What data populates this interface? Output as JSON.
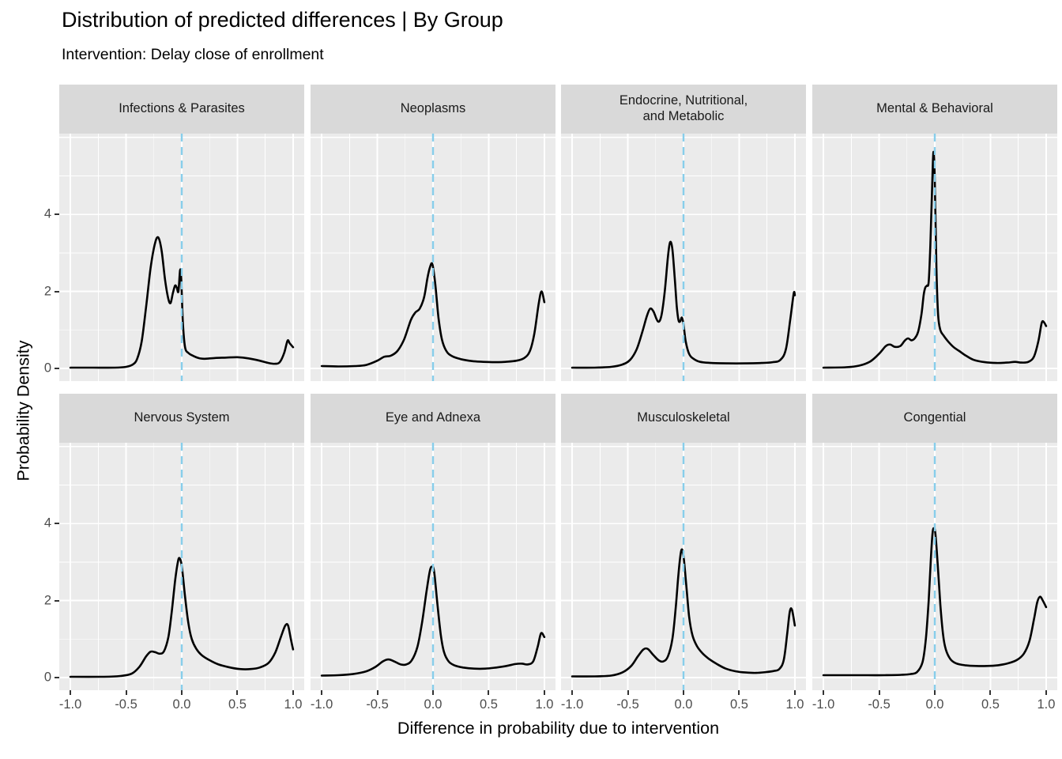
{
  "colors": {
    "background": "#FFFFFF",
    "panel_bg": "#EBEBEB",
    "strip_bg": "#D9D9D9",
    "grid": "#FFFFFF",
    "curve": "#000000",
    "reference_line": "#87CEEB",
    "tick_text": "#4D4D4D",
    "strip_text": "#1A1A1A",
    "tick_mark": "#333333"
  },
  "chart_data": {
    "type": "line",
    "subtype": "faceted-density",
    "title": "Distribution of predicted differences | By Group",
    "subtitle": "Intervention: Delay close of enrollment",
    "xlabel": "Difference in probability due to intervention",
    "ylabel": "Probability Density",
    "xlim": [
      -1.1,
      1.1
    ],
    "ylim": [
      -0.33,
      6.1
    ],
    "x_ticks": [
      -1.0,
      -0.5,
      0.0,
      0.5,
      1.0
    ],
    "x_tick_labels": [
      "-1.0",
      "-0.5",
      "0.0",
      "0.5",
      "1.0"
    ],
    "y_ticks": [
      0,
      2,
      4
    ],
    "y_tick_labels": [
      "0",
      "2",
      "4"
    ],
    "grid": {
      "major_x": [
        -1.0,
        -0.5,
        0.0,
        0.5,
        1.0
      ],
      "minor_x": [
        -0.75,
        -0.25,
        0.25,
        0.75
      ],
      "major_y": [
        0,
        2,
        4,
        6
      ],
      "minor_y": [
        1,
        3,
        5
      ],
      "grid_on": true
    },
    "legend_position": "none",
    "reference_line": {
      "x": 0,
      "style": "dashed"
    },
    "facet_layout": {
      "rows": 2,
      "cols": 4
    },
    "facets": [
      {
        "label": "Infections & Parasites",
        "points": [
          [
            -1,
            0.02
          ],
          [
            -0.8,
            0.02
          ],
          [
            -0.6,
            0.02
          ],
          [
            -0.5,
            0.04
          ],
          [
            -0.44,
            0.1
          ],
          [
            -0.4,
            0.25
          ],
          [
            -0.36,
            0.7
          ],
          [
            -0.32,
            1.6
          ],
          [
            -0.28,
            2.6
          ],
          [
            -0.24,
            3.25
          ],
          [
            -0.21,
            3.4
          ],
          [
            -0.18,
            3.05
          ],
          [
            -0.15,
            2.3
          ],
          [
            -0.12,
            1.8
          ],
          [
            -0.1,
            1.7
          ],
          [
            -0.08,
            1.95
          ],
          [
            -0.06,
            2.15
          ],
          [
            -0.045,
            2.1
          ],
          [
            -0.03,
            2.0
          ],
          [
            -0.015,
            2.55
          ],
          [
            -0.005,
            2.35
          ],
          [
            0.01,
            1.2
          ],
          [
            0.03,
            0.55
          ],
          [
            0.06,
            0.4
          ],
          [
            0.1,
            0.33
          ],
          [
            0.15,
            0.27
          ],
          [
            0.2,
            0.25
          ],
          [
            0.3,
            0.27
          ],
          [
            0.4,
            0.28
          ],
          [
            0.5,
            0.29
          ],
          [
            0.6,
            0.26
          ],
          [
            0.7,
            0.2
          ],
          [
            0.78,
            0.14
          ],
          [
            0.84,
            0.12
          ],
          [
            0.88,
            0.16
          ],
          [
            0.92,
            0.4
          ],
          [
            0.95,
            0.72
          ],
          [
            0.97,
            0.65
          ],
          [
            1,
            0.55
          ]
        ]
      },
      {
        "label": "Neoplasms",
        "points": [
          [
            -1,
            0.06
          ],
          [
            -0.85,
            0.05
          ],
          [
            -0.7,
            0.06
          ],
          [
            -0.6,
            0.09
          ],
          [
            -0.5,
            0.2
          ],
          [
            -0.44,
            0.3
          ],
          [
            -0.38,
            0.33
          ],
          [
            -0.32,
            0.45
          ],
          [
            -0.26,
            0.75
          ],
          [
            -0.2,
            1.25
          ],
          [
            -0.16,
            1.45
          ],
          [
            -0.12,
            1.55
          ],
          [
            -0.08,
            1.85
          ],
          [
            -0.05,
            2.35
          ],
          [
            -0.025,
            2.65
          ],
          [
            -0.005,
            2.7
          ],
          [
            0.02,
            2.2
          ],
          [
            0.05,
            1.3
          ],
          [
            0.08,
            0.75
          ],
          [
            0.12,
            0.45
          ],
          [
            0.17,
            0.32
          ],
          [
            0.25,
            0.24
          ],
          [
            0.35,
            0.19
          ],
          [
            0.45,
            0.17
          ],
          [
            0.55,
            0.16
          ],
          [
            0.65,
            0.17
          ],
          [
            0.75,
            0.2
          ],
          [
            0.82,
            0.27
          ],
          [
            0.87,
            0.45
          ],
          [
            0.91,
            0.9
          ],
          [
            0.95,
            1.7
          ],
          [
            0.975,
            2.0
          ],
          [
            1,
            1.72
          ]
        ]
      },
      {
        "label": "Endocrine, Nutritional,\nand Metabolic",
        "points": [
          [
            -1,
            0.02
          ],
          [
            -0.8,
            0.02
          ],
          [
            -0.65,
            0.04
          ],
          [
            -0.55,
            0.1
          ],
          [
            -0.48,
            0.22
          ],
          [
            -0.42,
            0.5
          ],
          [
            -0.37,
            0.95
          ],
          [
            -0.33,
            1.35
          ],
          [
            -0.3,
            1.55
          ],
          [
            -0.27,
            1.48
          ],
          [
            -0.23,
            1.22
          ],
          [
            -0.2,
            1.35
          ],
          [
            -0.17,
            1.95
          ],
          [
            -0.14,
            2.9
          ],
          [
            -0.12,
            3.28
          ],
          [
            -0.1,
            3.1
          ],
          [
            -0.08,
            2.4
          ],
          [
            -0.06,
            1.6
          ],
          [
            -0.045,
            1.25
          ],
          [
            -0.03,
            1.22
          ],
          [
            -0.015,
            1.32
          ],
          [
            0,
            1.15
          ],
          [
            0.02,
            0.7
          ],
          [
            0.05,
            0.38
          ],
          [
            0.09,
            0.25
          ],
          [
            0.15,
            0.17
          ],
          [
            0.25,
            0.14
          ],
          [
            0.4,
            0.13
          ],
          [
            0.55,
            0.13
          ],
          [
            0.7,
            0.14
          ],
          [
            0.8,
            0.16
          ],
          [
            0.87,
            0.22
          ],
          [
            0.92,
            0.5
          ],
          [
            0.96,
            1.3
          ],
          [
            0.99,
            1.95
          ],
          [
            1,
            1.9
          ]
        ]
      },
      {
        "label": "Mental & Behavioral",
        "points": [
          [
            -1,
            0.02
          ],
          [
            -0.8,
            0.03
          ],
          [
            -0.68,
            0.07
          ],
          [
            -0.58,
            0.18
          ],
          [
            -0.5,
            0.38
          ],
          [
            -0.44,
            0.58
          ],
          [
            -0.4,
            0.62
          ],
          [
            -0.36,
            0.56
          ],
          [
            -0.31,
            0.58
          ],
          [
            -0.27,
            0.72
          ],
          [
            -0.24,
            0.78
          ],
          [
            -0.21,
            0.73
          ],
          [
            -0.18,
            0.78
          ],
          [
            -0.15,
            0.95
          ],
          [
            -0.12,
            1.4
          ],
          [
            -0.1,
            1.9
          ],
          [
            -0.085,
            2.1
          ],
          [
            -0.07,
            2.15
          ],
          [
            -0.055,
            2.25
          ],
          [
            -0.04,
            3.2
          ],
          [
            -0.025,
            4.6
          ],
          [
            -0.012,
            5.62
          ],
          [
            0,
            4.9
          ],
          [
            0.015,
            2.6
          ],
          [
            0.03,
            1.4
          ],
          [
            0.05,
            1.0
          ],
          [
            0.08,
            0.85
          ],
          [
            0.12,
            0.7
          ],
          [
            0.17,
            0.55
          ],
          [
            0.22,
            0.45
          ],
          [
            0.28,
            0.33
          ],
          [
            0.35,
            0.22
          ],
          [
            0.45,
            0.16
          ],
          [
            0.55,
            0.14
          ],
          [
            0.65,
            0.15
          ],
          [
            0.72,
            0.17
          ],
          [
            0.78,
            0.15
          ],
          [
            0.84,
            0.17
          ],
          [
            0.89,
            0.3
          ],
          [
            0.93,
            0.7
          ],
          [
            0.96,
            1.18
          ],
          [
            0.98,
            1.2
          ],
          [
            1,
            1.1
          ]
        ]
      },
      {
        "label": "Nervous System",
        "points": [
          [
            -1,
            0.02
          ],
          [
            -0.7,
            0.02
          ],
          [
            -0.55,
            0.04
          ],
          [
            -0.45,
            0.1
          ],
          [
            -0.38,
            0.28
          ],
          [
            -0.32,
            0.55
          ],
          [
            -0.28,
            0.67
          ],
          [
            -0.24,
            0.66
          ],
          [
            -0.2,
            0.62
          ],
          [
            -0.16,
            0.68
          ],
          [
            -0.12,
            1.05
          ],
          [
            -0.09,
            1.7
          ],
          [
            -0.06,
            2.5
          ],
          [
            -0.035,
            3.0
          ],
          [
            -0.02,
            3.1
          ],
          [
            0,
            2.9
          ],
          [
            0.03,
            2.1
          ],
          [
            0.06,
            1.4
          ],
          [
            0.09,
            1.0
          ],
          [
            0.13,
            0.75
          ],
          [
            0.18,
            0.58
          ],
          [
            0.25,
            0.45
          ],
          [
            0.33,
            0.34
          ],
          [
            0.42,
            0.27
          ],
          [
            0.52,
            0.22
          ],
          [
            0.62,
            0.22
          ],
          [
            0.7,
            0.26
          ],
          [
            0.78,
            0.38
          ],
          [
            0.84,
            0.65
          ],
          [
            0.89,
            1.05
          ],
          [
            0.93,
            1.35
          ],
          [
            0.955,
            1.35
          ],
          [
            0.98,
            1.0
          ],
          [
            1,
            0.73
          ]
        ]
      },
      {
        "label": "Eye and Adnexa",
        "points": [
          [
            -1,
            0.05
          ],
          [
            -0.85,
            0.06
          ],
          [
            -0.72,
            0.09
          ],
          [
            -0.6,
            0.16
          ],
          [
            -0.52,
            0.27
          ],
          [
            -0.45,
            0.42
          ],
          [
            -0.4,
            0.47
          ],
          [
            -0.35,
            0.42
          ],
          [
            -0.29,
            0.34
          ],
          [
            -0.24,
            0.34
          ],
          [
            -0.19,
            0.45
          ],
          [
            -0.14,
            0.8
          ],
          [
            -0.1,
            1.4
          ],
          [
            -0.06,
            2.2
          ],
          [
            -0.03,
            2.75
          ],
          [
            -0.01,
            2.88
          ],
          [
            0.01,
            2.75
          ],
          [
            0.04,
            1.9
          ],
          [
            0.07,
            1.1
          ],
          [
            0.1,
            0.65
          ],
          [
            0.14,
            0.42
          ],
          [
            0.19,
            0.32
          ],
          [
            0.27,
            0.26
          ],
          [
            0.37,
            0.23
          ],
          [
            0.47,
            0.23
          ],
          [
            0.57,
            0.26
          ],
          [
            0.66,
            0.3
          ],
          [
            0.74,
            0.35
          ],
          [
            0.8,
            0.36
          ],
          [
            0.85,
            0.34
          ],
          [
            0.9,
            0.42
          ],
          [
            0.94,
            0.8
          ],
          [
            0.97,
            1.15
          ],
          [
            1,
            1.05
          ]
        ]
      },
      {
        "label": "Musculoskeletal",
        "points": [
          [
            -1,
            0.03
          ],
          [
            -0.8,
            0.03
          ],
          [
            -0.65,
            0.05
          ],
          [
            -0.55,
            0.13
          ],
          [
            -0.47,
            0.3
          ],
          [
            -0.41,
            0.55
          ],
          [
            -0.36,
            0.73
          ],
          [
            -0.32,
            0.74
          ],
          [
            -0.27,
            0.58
          ],
          [
            -0.22,
            0.44
          ],
          [
            -0.18,
            0.42
          ],
          [
            -0.14,
            0.55
          ],
          [
            -0.1,
            1.0
          ],
          [
            -0.07,
            1.8
          ],
          [
            -0.045,
            2.7
          ],
          [
            -0.02,
            3.3
          ],
          [
            0,
            3.15
          ],
          [
            0.025,
            2.4
          ],
          [
            0.05,
            1.6
          ],
          [
            0.08,
            1.1
          ],
          [
            0.12,
            0.82
          ],
          [
            0.17,
            0.63
          ],
          [
            0.23,
            0.48
          ],
          [
            0.3,
            0.35
          ],
          [
            0.38,
            0.23
          ],
          [
            0.47,
            0.16
          ],
          [
            0.56,
            0.13
          ],
          [
            0.65,
            0.12
          ],
          [
            0.74,
            0.14
          ],
          [
            0.81,
            0.17
          ],
          [
            0.86,
            0.22
          ],
          [
            0.9,
            0.45
          ],
          [
            0.93,
            1.1
          ],
          [
            0.955,
            1.72
          ],
          [
            0.975,
            1.75
          ],
          [
            1,
            1.35
          ]
        ]
      },
      {
        "label": "Congential",
        "points": [
          [
            -1,
            0.06
          ],
          [
            -0.8,
            0.06
          ],
          [
            -0.6,
            0.06
          ],
          [
            -0.45,
            0.06
          ],
          [
            -0.3,
            0.07
          ],
          [
            -0.22,
            0.09
          ],
          [
            -0.16,
            0.14
          ],
          [
            -0.11,
            0.4
          ],
          [
            -0.08,
            1.0
          ],
          [
            -0.055,
            2.0
          ],
          [
            -0.035,
            3.1
          ],
          [
            -0.02,
            3.75
          ],
          [
            -0.008,
            3.88
          ],
          [
            0.005,
            3.75
          ],
          [
            0.025,
            3.0
          ],
          [
            0.05,
            1.9
          ],
          [
            0.075,
            1.1
          ],
          [
            0.1,
            0.72
          ],
          [
            0.14,
            0.48
          ],
          [
            0.19,
            0.37
          ],
          [
            0.27,
            0.32
          ],
          [
            0.37,
            0.3
          ],
          [
            0.47,
            0.3
          ],
          [
            0.57,
            0.32
          ],
          [
            0.66,
            0.37
          ],
          [
            0.74,
            0.46
          ],
          [
            0.8,
            0.62
          ],
          [
            0.85,
            0.95
          ],
          [
            0.89,
            1.5
          ],
          [
            0.92,
            1.95
          ],
          [
            0.945,
            2.1
          ],
          [
            0.97,
            2.0
          ],
          [
            1,
            1.83
          ]
        ]
      }
    ]
  }
}
